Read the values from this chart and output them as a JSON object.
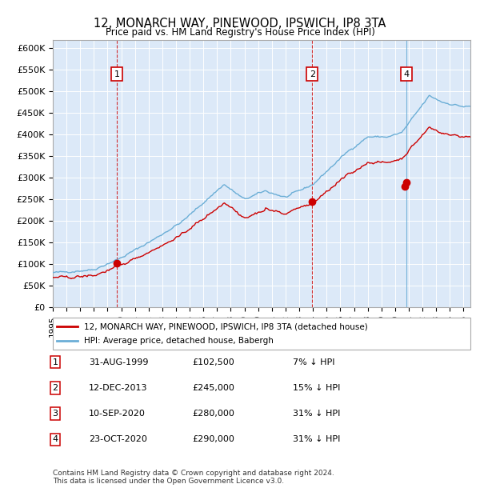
{
  "title": "12, MONARCH WAY, PINEWOOD, IPSWICH, IP8 3TA",
  "subtitle": "Price paid vs. HM Land Registry's House Price Index (HPI)",
  "xlabel": "",
  "ylabel": "",
  "ylim": [
    0,
    620000
  ],
  "yticks": [
    0,
    50000,
    100000,
    150000,
    200000,
    250000,
    300000,
    350000,
    400000,
    450000,
    500000,
    550000,
    600000
  ],
  "xlim_start": 1995.0,
  "xlim_end": 2025.5,
  "background_color": "#dce9f8",
  "plot_bg": "#dce9f8",
  "hpi_color": "#6baed6",
  "price_color": "#cc0000",
  "marker_color": "#cc0000",
  "vline_sale_color": "#cc0000",
  "vline_hpi_color": "#6baed6",
  "sales": [
    {
      "label": 1,
      "date_year": 1999.67,
      "price": 102500,
      "hpi_at_sale": 110000
    },
    {
      "label": 2,
      "date_year": 2013.95,
      "price": 245000,
      "hpi_at_sale": 285000
    },
    {
      "label": 3,
      "date_year": 2020.7,
      "price": 280000,
      "hpi_at_sale": 405000
    },
    {
      "label": 4,
      "date_year": 2020.82,
      "price": 290000,
      "hpi_at_sale": 420000
    }
  ],
  "legend_label_price": "12, MONARCH WAY, PINEWOOD, IPSWICH, IP8 3TA (detached house)",
  "legend_label_hpi": "HPI: Average price, detached house, Babergh",
  "table_rows": [
    {
      "num": 1,
      "date": "31-AUG-1999",
      "price": "£102,500",
      "note": "7% ↓ HPI"
    },
    {
      "num": 2,
      "date": "12-DEC-2013",
      "price": "£245,000",
      "note": "15% ↓ HPI"
    },
    {
      "num": 3,
      "date": "10-SEP-2020",
      "price": "£280,000",
      "note": "31% ↓ HPI"
    },
    {
      "num": 4,
      "date": "23-OCT-2020",
      "price": "£290,000",
      "note": "31% ↓ HPI"
    }
  ],
  "footer": "Contains HM Land Registry data © Crown copyright and database right 2024.\nThis data is licensed under the Open Government Licence v3.0."
}
